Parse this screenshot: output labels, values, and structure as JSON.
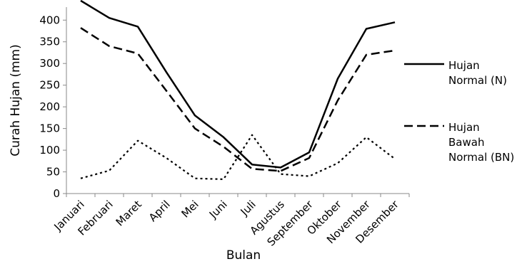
{
  "chart_data": {
    "type": "line",
    "xlabel": "Bulan",
    "ylabel": "Curah Hujan (mm)",
    "ylim": [
      0,
      430
    ],
    "yticks": [
      0,
      50,
      100,
      150,
      200,
      250,
      300,
      350,
      400
    ],
    "categories": [
      "Januari",
      "Februari",
      "Maret",
      "April",
      "Mei",
      "Juni",
      "Juli",
      "Agustus",
      "September",
      "Oktober",
      "November",
      "Desember"
    ],
    "series": [
      {
        "name": "Hujan Normal (N)",
        "legend_lines": [
          "Hujan",
          "Normal (N)"
        ],
        "style": "solid",
        "values": [
          445,
          405,
          385,
          280,
          180,
          130,
          67,
          60,
          95,
          265,
          380,
          395
        ]
      },
      {
        "name": "Hujan Bawah Normal (BN)",
        "legend_lines": [
          "Hujan",
          "Bawah",
          "Normal (BN)"
        ],
        "style": "dashed",
        "values": [
          382,
          340,
          323,
          237,
          150,
          108,
          57,
          52,
          82,
          215,
          320,
          330
        ]
      },
      {
        "name": "",
        "style": "dashdot-dotted",
        "values": [
          35,
          53,
          122,
          82,
          35,
          33,
          135,
          45,
          40,
          70,
          130,
          80
        ]
      }
    ],
    "grid": false,
    "legend_position": "right",
    "colors": {
      "line": "#000000"
    }
  }
}
